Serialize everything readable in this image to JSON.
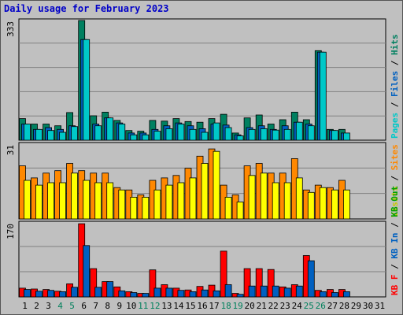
{
  "title": "Daily usage for February 2023",
  "chart_data": [
    {
      "type": "bar",
      "panel": "top",
      "y_label": "333",
      "ylim": [
        0,
        333
      ],
      "x": [
        1,
        2,
        3,
        4,
        5,
        6,
        7,
        8,
        9,
        10,
        11,
        12,
        13,
        14,
        15,
        16,
        17,
        18,
        19,
        20,
        21,
        22,
        23,
        24,
        25,
        26,
        27,
        28,
        29,
        30,
        31
      ],
      "right_label": [
        {
          "text": "Pages",
          "color": "#00c8c8"
        },
        {
          "text": " / ",
          "color": "#000000"
        },
        {
          "text": "Files",
          "color": "#0060c0"
        },
        {
          "text": " / ",
          "color": "#000000"
        },
        {
          "text": "Hits",
          "color": "#008060"
        }
      ],
      "series": [
        {
          "name": "Hits",
          "color": "#008060",
          "values": [
            60,
            45,
            45,
            40,
            77,
            333,
            68,
            78,
            55,
            27,
            25,
            55,
            53,
            60,
            52,
            50,
            60,
            72,
            20,
            62,
            70,
            45,
            57,
            78,
            57,
            249,
            30,
            30,
            0,
            0,
            0
          ]
        },
        {
          "name": "Files",
          "color": "#0060c0",
          "values": [
            45,
            30,
            35,
            30,
            40,
            280,
            45,
            62,
            48,
            20,
            20,
            30,
            40,
            48,
            40,
            32,
            45,
            42,
            15,
            35,
            40,
            30,
            40,
            50,
            45,
            245,
            27,
            20,
            0,
            0,
            0
          ]
        },
        {
          "name": "Pages",
          "color": "#00c8c8",
          "values": [
            45,
            30,
            27,
            22,
            38,
            280,
            40,
            62,
            45,
            15,
            15,
            25,
            32,
            45,
            30,
            22,
            48,
            35,
            12,
            30,
            32,
            28,
            30,
            50,
            40,
            245,
            27,
            20,
            0,
            0,
            0
          ]
        }
      ]
    },
    {
      "type": "bar",
      "panel": "middle",
      "y_label": "31",
      "ylim": [
        0,
        31
      ],
      "x": [
        1,
        2,
        3,
        4,
        5,
        6,
        7,
        8,
        9,
        10,
        11,
        12,
        13,
        14,
        15,
        16,
        17,
        18,
        19,
        20,
        21,
        22,
        23,
        24,
        25,
        26,
        27,
        28,
        29,
        30,
        31
      ],
      "right_label": [
        {
          "text": "Visits",
          "color": "#c8c800"
        },
        {
          "text": " / ",
          "color": "#000000"
        },
        {
          "text": "Sites",
          "color": "#ff8800"
        }
      ],
      "series": [
        {
          "name": "Sites",
          "color": "#ff8800",
          "values": [
            22,
            17,
            19,
            20,
            23,
            20,
            19,
            19,
            13,
            12,
            10,
            16,
            17,
            18,
            21,
            26,
            29,
            14,
            10,
            22,
            23,
            19,
            19,
            25,
            12,
            14,
            13,
            16,
            0,
            0,
            0
          ]
        },
        {
          "name": "Visits",
          "color": "#ffff00",
          "values": [
            16,
            14,
            15,
            15,
            19,
            16,
            15,
            15,
            12,
            9,
            9,
            12,
            14,
            15,
            17,
            23,
            28,
            9,
            7,
            18,
            19,
            15,
            15,
            17,
            11,
            13,
            12,
            12,
            0,
            0,
            0
          ]
        }
      ]
    },
    {
      "type": "bar",
      "panel": "bottom",
      "y_label": "170",
      "ylim": [
        0,
        170
      ],
      "x": [
        1,
        2,
        3,
        4,
        5,
        6,
        7,
        8,
        9,
        10,
        11,
        12,
        13,
        14,
        15,
        16,
        17,
        18,
        19,
        20,
        21,
        22,
        23,
        24,
        25,
        26,
        27,
        28,
        29,
        30,
        31
      ],
      "right_label": [
        {
          "text": "KB F",
          "color": "#ff0000"
        },
        {
          "text": " / ",
          "color": "#000000"
        },
        {
          "text": "KB In",
          "color": "#0060c0"
        },
        {
          "text": " / ",
          "color": "#000000"
        },
        {
          "text": "KB Out",
          "color": "#00a000"
        }
      ],
      "series": [
        {
          "name": "KB F",
          "color": "#ff0000",
          "values": [
            20,
            18,
            17,
            13,
            30,
            168,
            65,
            35,
            23,
            12,
            8,
            62,
            28,
            20,
            16,
            24,
            27,
            105,
            8,
            65,
            65,
            63,
            23,
            28,
            95,
            15,
            17,
            17,
            0,
            0,
            0
          ]
        },
        {
          "name": "KB In",
          "color": "#0060c0",
          "values": [
            17,
            13,
            15,
            12,
            22,
            118,
            22,
            35,
            14,
            10,
            8,
            20,
            20,
            15,
            12,
            16,
            14,
            28,
            6,
            25,
            25,
            25,
            20,
            25,
            83,
            12,
            10,
            12,
            0,
            0,
            0
          ]
        }
      ]
    }
  ],
  "weekend_days": [
    4,
    5,
    11,
    12,
    18,
    19,
    25,
    26
  ],
  "colors": {
    "grid": "#808080",
    "weekday_label": "#000000",
    "weekend_label": "#00805c",
    "bar_outline": "#000000"
  }
}
